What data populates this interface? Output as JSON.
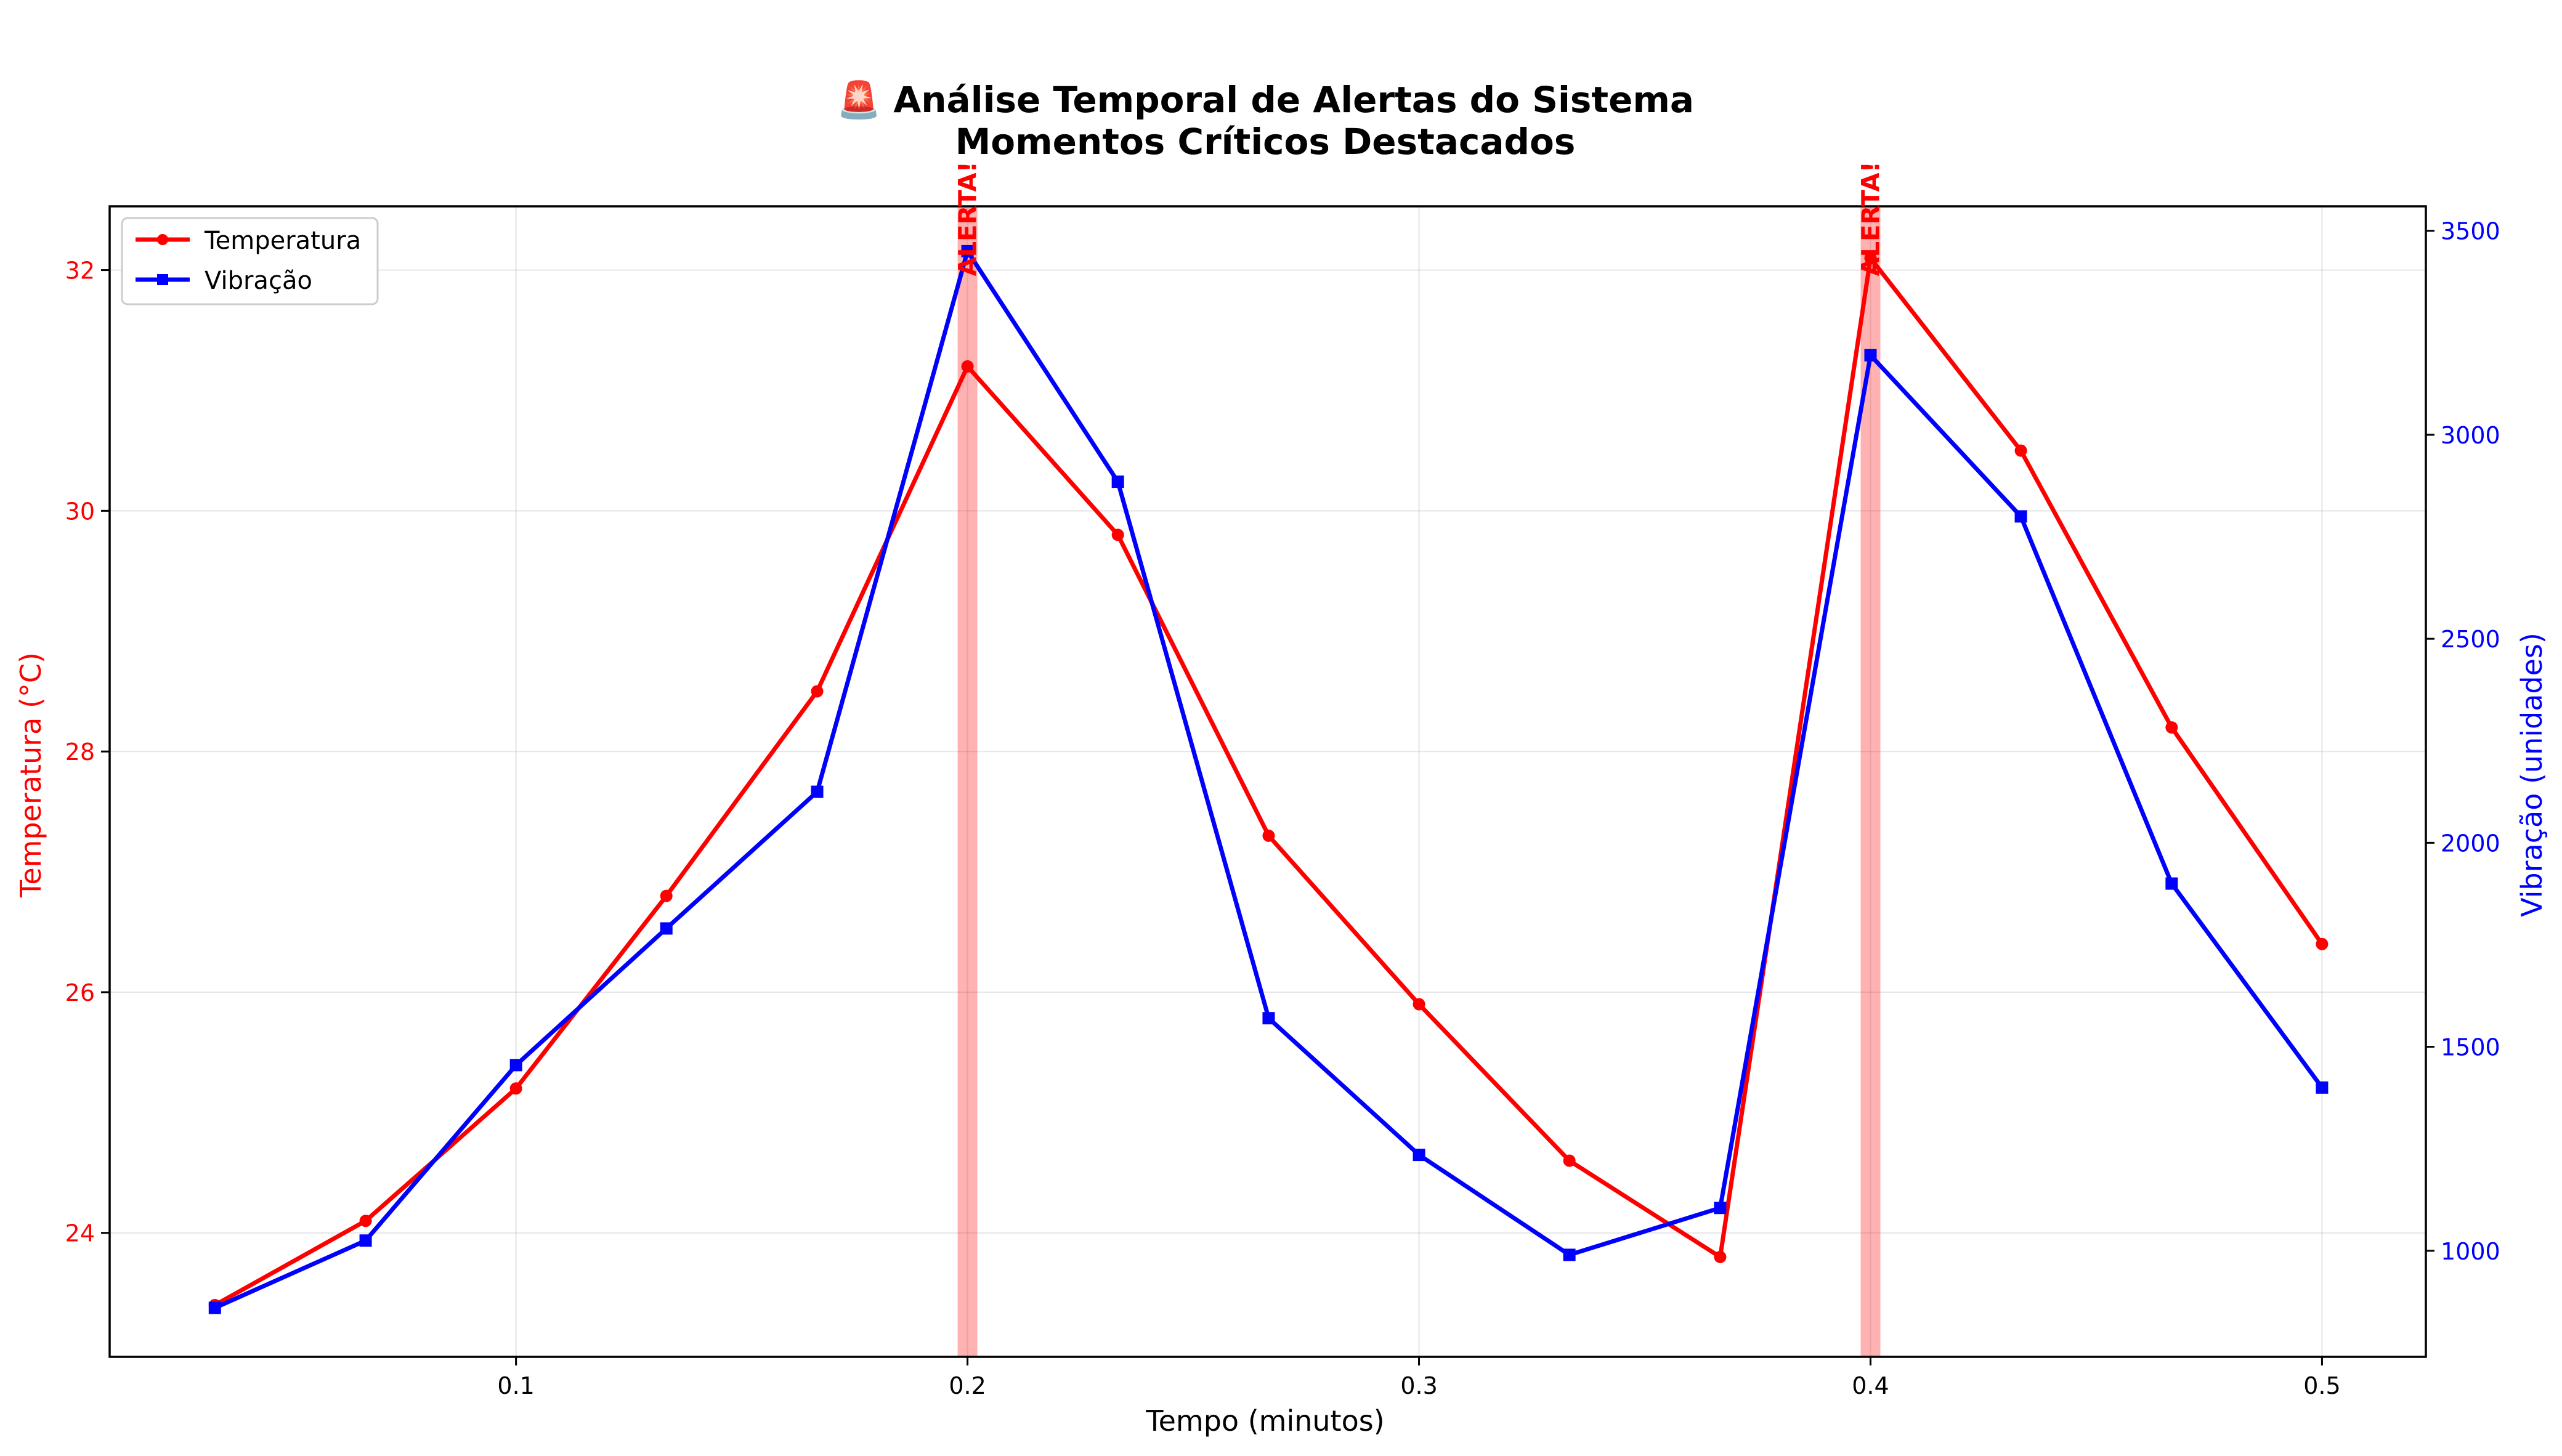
{
  "chart_data": {
    "type": "line",
    "title_lines": [
      "🚨 Análise Temporal de Alertas do Sistema",
      "Momentos Críticos Destacados"
    ],
    "xlabel": "Tempo (minutos)",
    "ylabel_left": "Temperatura (°C)",
    "ylabel_right": "Vibração (unidades)",
    "xlim": [
      0.01,
      0.523
    ],
    "ylim_left": [
      22.97,
      32.53
    ],
    "ylim_right": [
      740,
      3560
    ],
    "x_ticks": [
      0.1,
      0.2,
      0.3,
      0.4,
      0.5
    ],
    "x_tick_labels": [
      "0.1",
      "0.2",
      "0.3",
      "0.4",
      "0.5"
    ],
    "y_left_ticks": [
      24,
      26,
      28,
      30,
      32
    ],
    "y_left_tick_labels": [
      "24",
      "26",
      "28",
      "30",
      "32"
    ],
    "y_right_ticks": [
      1000,
      1500,
      2000,
      2500,
      3000,
      3500
    ],
    "y_right_tick_labels": [
      "1000",
      "1500",
      "2000",
      "2500",
      "3000",
      "3500"
    ],
    "grid": true,
    "legend_position": "upper-left",
    "x": [
      0.0333,
      0.0667,
      0.1,
      0.1333,
      0.1667,
      0.2,
      0.2333,
      0.2667,
      0.3,
      0.3333,
      0.3667,
      0.4,
      0.4333,
      0.4667,
      0.5
    ],
    "series": [
      {
        "name": "Temperatura",
        "axis": "left",
        "color": "#ff0000",
        "marker": "circle",
        "values": [
          23.4,
          24.1,
          25.2,
          26.8,
          28.5,
          31.2,
          29.8,
          27.3,
          25.9,
          24.6,
          23.8,
          32.1,
          30.5,
          28.2,
          26.4
        ]
      },
      {
        "name": "Vibração",
        "axis": "right",
        "color": "#0000ff",
        "marker": "square",
        "values": [
          860,
          1025,
          1455,
          1790,
          2125,
          3450,
          2885,
          1570,
          1235,
          990,
          1105,
          3195,
          2800,
          1900,
          1400
        ]
      }
    ],
    "alerts": [
      {
        "x": 0.2,
        "label": "ALERTA!"
      },
      {
        "x": 0.4,
        "label": "ALERTA!"
      }
    ],
    "alert_band_color": "#ff0000"
  }
}
